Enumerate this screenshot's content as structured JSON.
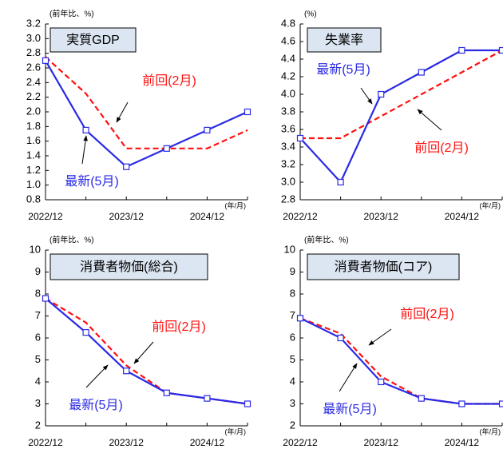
{
  "chart_data": [
    {
      "type": "line",
      "title": "実質GDP",
      "unit_label": "(前年比、%)",
      "xlabel": "(年/月)",
      "categories": [
        "2022/12",
        null,
        "2023/12",
        null,
        "2024/12",
        null
      ],
      "ylim": [
        0.8,
        3.2
      ],
      "yticks": [
        0.8,
        {
          "value": 1,
          "label": "1.0"
        },
        1.2,
        1.4,
        1.6,
        1.8,
        {
          "value": 2,
          "label": "2.0"
        },
        2.2,
        2.4,
        2.6,
        2.8,
        {
          "value": 3,
          "label": "3.0"
        },
        3.2
      ],
      "series": [
        {
          "name": "最新(5月)",
          "color": "#2a2ae6",
          "style": "solid",
          "marker": "square",
          "values": [
            2.7,
            1.75,
            1.25,
            1.5,
            1.75,
            2.0
          ]
        },
        {
          "name": "前回(2月)",
          "color": "#ff1010",
          "style": "dashed",
          "marker": "none",
          "values": [
            2.75,
            2.25,
            1.5,
            1.5,
            1.5,
            1.75
          ]
        }
      ]
    },
    {
      "type": "line",
      "title": "失業率",
      "unit_label": "(%)",
      "xlabel": "(年/月)",
      "categories": [
        "2022/12",
        null,
        "2023/12",
        null,
        "2024/12",
        null
      ],
      "ylim": [
        2.8,
        4.8
      ],
      "yticks": [
        2.8,
        {
          "value": 3,
          "label": "3.0"
        },
        3.2,
        3.4,
        3.6,
        3.8,
        {
          "value": 4,
          "label": "4.0"
        },
        4.2,
        4.4,
        4.6,
        4.8
      ],
      "series": [
        {
          "name": "最新(5月)",
          "color": "#2a2ae6",
          "style": "solid",
          "marker": "square",
          "values": [
            3.5,
            3.0,
            4.0,
            4.25,
            4.5,
            4.5
          ]
        },
        {
          "name": "前回(2月)",
          "color": "#ff1010",
          "style": "dashed",
          "marker": "none",
          "values": [
            3.5,
            3.5,
            3.75,
            4.0,
            4.25,
            4.5
          ]
        }
      ]
    },
    {
      "type": "line",
      "title": "消費者物価(総合)",
      "unit_label": "(前年比、%)",
      "xlabel": "(年/月)",
      "categories": [
        "2022/12",
        null,
        "2023/12",
        null,
        "2024/12",
        null
      ],
      "ylim": [
        2,
        10
      ],
      "yticks": [
        2,
        3,
        4,
        5,
        6,
        7,
        8,
        9,
        10
      ],
      "series": [
        {
          "name": "最新(5月)",
          "color": "#2a2ae6",
          "style": "solid",
          "marker": "square",
          "values": [
            7.8,
            6.25,
            4.5,
            3.5,
            3.25,
            3.0
          ]
        },
        {
          "name": "前回(2月)",
          "color": "#ff1010",
          "style": "dashed",
          "marker": "none",
          "values": [
            7.8,
            6.7,
            4.75,
            3.5,
            3.25,
            3.0
          ]
        }
      ]
    },
    {
      "type": "line",
      "title": "消費者物価(コア)",
      "unit_label": "(前年比、%)",
      "xlabel": "(年/月)",
      "categories": [
        "2022/12",
        null,
        "2023/12",
        null,
        "2024/12",
        null
      ],
      "ylim": [
        2,
        10
      ],
      "yticks": [
        2,
        3,
        4,
        5,
        6,
        7,
        8,
        9,
        10
      ],
      "series": [
        {
          "name": "最新(5月)",
          "color": "#2a2ae6",
          "style": "solid",
          "marker": "square",
          "values": [
            6.9,
            6.0,
            4.0,
            3.25,
            3.0,
            3.0
          ]
        },
        {
          "name": "前回(2月)",
          "color": "#ff1010",
          "style": "dashed",
          "marker": "none",
          "values": [
            6.9,
            6.2,
            4.25,
            3.25,
            3.0,
            3.0
          ]
        }
      ]
    }
  ]
}
